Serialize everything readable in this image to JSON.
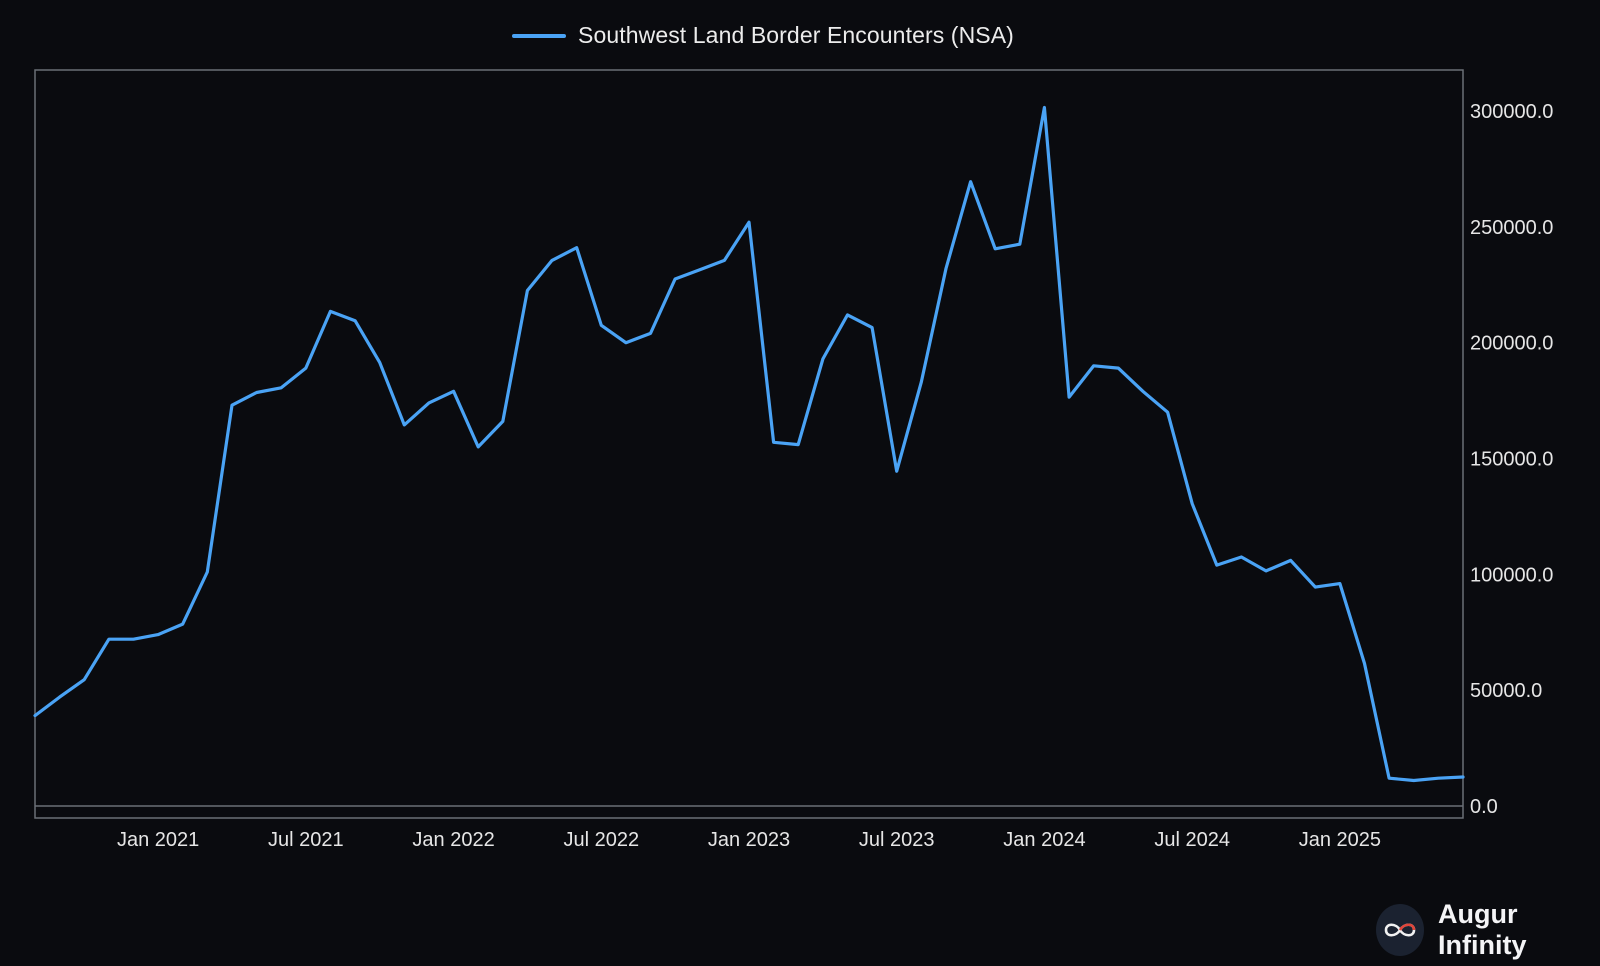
{
  "legend": {
    "label": "Southwest Land Border Encounters (NSA)"
  },
  "brand": {
    "name": "Augur Infinity"
  },
  "colors": {
    "series": "#4aa3f5",
    "background": "#0a0b0f",
    "frame": "#6b6f76",
    "brand_red": "#e0453a"
  },
  "chart_data": {
    "type": "line",
    "series": [
      {
        "name": "Southwest Land Border Encounters (NSA)",
        "x": [
          "2020-08",
          "2020-09",
          "2020-10",
          "2020-11",
          "2020-12",
          "2021-01",
          "2021-02",
          "2021-03",
          "2021-04",
          "2021-05",
          "2021-06",
          "2021-07",
          "2021-08",
          "2021-09",
          "2021-10",
          "2021-11",
          "2021-12",
          "2022-01",
          "2022-02",
          "2022-03",
          "2022-04",
          "2022-05",
          "2022-06",
          "2022-07",
          "2022-08",
          "2022-09",
          "2022-10",
          "2022-11",
          "2022-12",
          "2023-01",
          "2023-02",
          "2023-03",
          "2023-04",
          "2023-05",
          "2023-06",
          "2023-07",
          "2023-08",
          "2023-09",
          "2023-10",
          "2023-11",
          "2023-12",
          "2024-01",
          "2024-02",
          "2024-03",
          "2024-04",
          "2024-05",
          "2024-06",
          "2024-07",
          "2024-08",
          "2024-09",
          "2024-10",
          "2024-11",
          "2024-12",
          "2025-01",
          "2025-02",
          "2025-03",
          "2025-04",
          "2025-05",
          "2025-06"
        ],
        "values": [
          39000,
          47000,
          54500,
          72000,
          72000,
          74000,
          78500,
          101000,
          173000,
          178500,
          180500,
          189000,
          213500,
          209500,
          191500,
          164500,
          174000,
          179000,
          155000,
          166000,
          222500,
          235500,
          241000,
          207500,
          200000,
          204000,
          227500,
          231500,
          235500,
          252000,
          157000,
          156000,
          193000,
          212000,
          206500,
          144500,
          183000,
          232000,
          269500,
          240500,
          242500,
          301500,
          176500,
          190000,
          189000,
          179000,
          170000,
          130500,
          104000,
          107500,
          101500,
          106000,
          94500,
          96000,
          61500,
          12000,
          11000,
          12000,
          12500
        ]
      }
    ],
    "y_ticks": [
      0,
      50000,
      100000,
      150000,
      200000,
      250000,
      300000
    ],
    "y_tick_labels": [
      "0.0",
      "50000.0",
      "100000.0",
      "150000.0",
      "200000.0",
      "250000.0",
      "300000.0"
    ],
    "x_ticks": [
      "2021-01",
      "2021-07",
      "2022-01",
      "2022-07",
      "2023-01",
      "2023-07",
      "2024-01",
      "2024-07",
      "2025-01"
    ],
    "x_tick_labels": [
      "Jan 2021",
      "Jul 2021",
      "Jan 2022",
      "Jul 2022",
      "Jan 2023",
      "Jul 2023",
      "Jan 2024",
      "Jul 2024",
      "Jan 2025"
    ],
    "xlim": [
      "2020-08",
      "2025-06"
    ],
    "ylim": [
      0,
      303000
    ],
    "y_axis_side": "right",
    "grid": false,
    "legend_position": "top"
  }
}
